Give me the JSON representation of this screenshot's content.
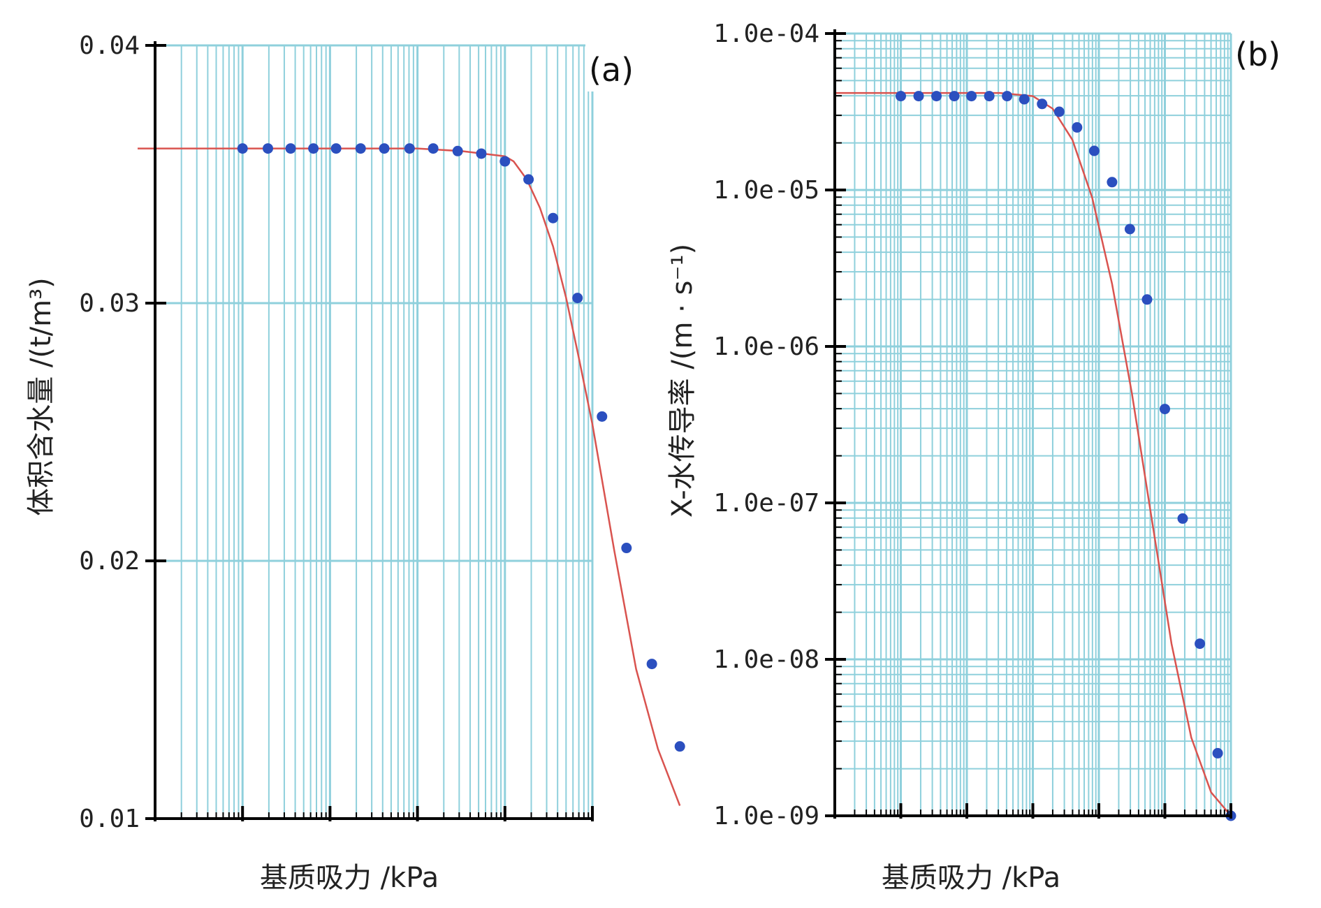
{
  "chart_data": [
    {
      "panel": "(a)",
      "type": "scatter",
      "xlabel": "基质吸力 /kPa",
      "ylabel": "体积含水量 /(t/m³)",
      "y_scale": "linear",
      "ylim": [
        0.01,
        0.04
      ],
      "yticks": [
        0.01,
        0.02,
        0.03,
        0.04
      ],
      "ytick_labels": [
        "0.01",
        "0.02",
        "0.03",
        "0.04"
      ],
      "x_scale": "log",
      "x_decades": 5,
      "grid": true,
      "colors": {
        "grid": "#8fd0dc",
        "curve": "#d9534f",
        "points": "#2b4fbf",
        "axis": "#000000"
      },
      "series": [
        {
          "kind": "fit-curve",
          "x_decade": [
            -0.2,
            1.0,
            2.0,
            3.0,
            3.5,
            4.0,
            4.1,
            4.25,
            4.4,
            4.55,
            4.7,
            4.85,
            5.0,
            5.25,
            5.5,
            5.75,
            6.0
          ],
          "y": [
            0.036,
            0.036,
            0.036,
            0.036,
            0.0359,
            0.0357,
            0.0355,
            0.0348,
            0.0337,
            0.0322,
            0.0302,
            0.0278,
            0.0253,
            0.0204,
            0.0158,
            0.0127,
            0.0105
          ]
        },
        {
          "kind": "points",
          "x_decade": [
            1.0,
            1.29,
            1.55,
            1.81,
            2.07,
            2.35,
            2.62,
            2.91,
            3.18,
            3.46,
            3.73,
            4.0,
            4.27,
            4.55,
            4.83,
            5.11,
            5.39,
            5.68,
            6.0
          ],
          "y": [
            0.036,
            0.036,
            0.036,
            0.036,
            0.036,
            0.036,
            0.036,
            0.036,
            0.036,
            0.0359,
            0.0358,
            0.0355,
            0.0348,
            0.0333,
            0.0302,
            0.0256,
            0.0205,
            0.016,
            0.0128
          ]
        }
      ]
    },
    {
      "panel": "(b)",
      "type": "scatter",
      "xlabel": "基质吸力 /kPa",
      "ylabel": "X-水传导率 /(m · s⁻¹)",
      "y_scale": "log",
      "ylim": [
        1e-09,
        0.0001
      ],
      "yticks": [
        1e-09,
        1e-08,
        1e-07,
        1e-06,
        1e-05,
        0.0001
      ],
      "ytick_labels": [
        "1.0e-09",
        "1.0e-08",
        "1.0e-07",
        "1.0e-06",
        "1.0e-05",
        "1.0e-04"
      ],
      "x_scale": "log",
      "x_decades": 6,
      "grid": true,
      "colors": {
        "grid": "#8fd0dc",
        "curve": "#d9534f",
        "points": "#2b4fbf",
        "axis": "#000000"
      },
      "series": [
        {
          "kind": "fit-curve",
          "x_decade": [
            0.0,
            1.0,
            2.0,
            2.5,
            3.0,
            3.3,
            3.6,
            3.9,
            4.2,
            4.5,
            4.8,
            5.1,
            5.4,
            5.7,
            6.0
          ],
          "y_log10": [
            -4.38,
            -4.38,
            -4.38,
            -4.38,
            -4.4,
            -4.48,
            -4.68,
            -5.05,
            -5.6,
            -6.3,
            -7.1,
            -7.9,
            -8.5,
            -8.85,
            -9.0
          ]
        },
        {
          "kind": "points",
          "x_decade": [
            1.0,
            1.27,
            1.54,
            1.81,
            2.07,
            2.34,
            2.61,
            2.87,
            3.14,
            3.4,
            3.67,
            3.93,
            4.2,
            4.47,
            4.73,
            5.0,
            5.27,
            5.53,
            5.8,
            6.0
          ],
          "y_log10": [
            -4.4,
            -4.4,
            -4.4,
            -4.4,
            -4.4,
            -4.4,
            -4.4,
            -4.42,
            -4.45,
            -4.5,
            -4.6,
            -4.75,
            -4.95,
            -5.25,
            -5.7,
            -6.4,
            -7.1,
            -7.9,
            -8.6,
            -9.0
          ]
        }
      ]
    }
  ]
}
